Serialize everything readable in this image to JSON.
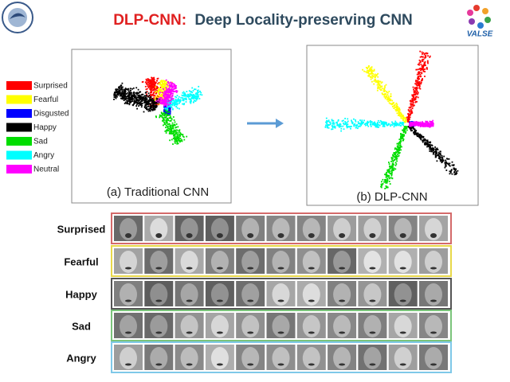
{
  "header": {
    "title_highlight": "DLP-CNN:",
    "title_rest": "Deep Locality-preserving CNN"
  },
  "logo_right": "VALSE",
  "legend": [
    {
      "label": "Surprised",
      "color": "#ff0000"
    },
    {
      "label": "Fearful",
      "color": "#ffff00"
    },
    {
      "label": "Disgusted",
      "color": "#0000ff"
    },
    {
      "label": "Happy",
      "color": "#000000"
    },
    {
      "label": "Sad",
      "color": "#00dd00"
    },
    {
      "label": "Angry",
      "color": "#00ffff"
    },
    {
      "label": "Neutral",
      "color": "#ff00ff"
    }
  ],
  "panels": [
    {
      "caption": "(a) Traditional CNN"
    },
    {
      "caption": "(b) DLP-CNN"
    }
  ],
  "rows": [
    {
      "label": "Surprised",
      "border": "#d46a6a"
    },
    {
      "label": "Fearful",
      "border": "#e8d84a"
    },
    {
      "label": "Happy",
      "border": "#555555"
    },
    {
      "label": "Sad",
      "border": "#7bc47b"
    },
    {
      "label": "Angry",
      "border": "#7fc8e8"
    }
  ]
}
